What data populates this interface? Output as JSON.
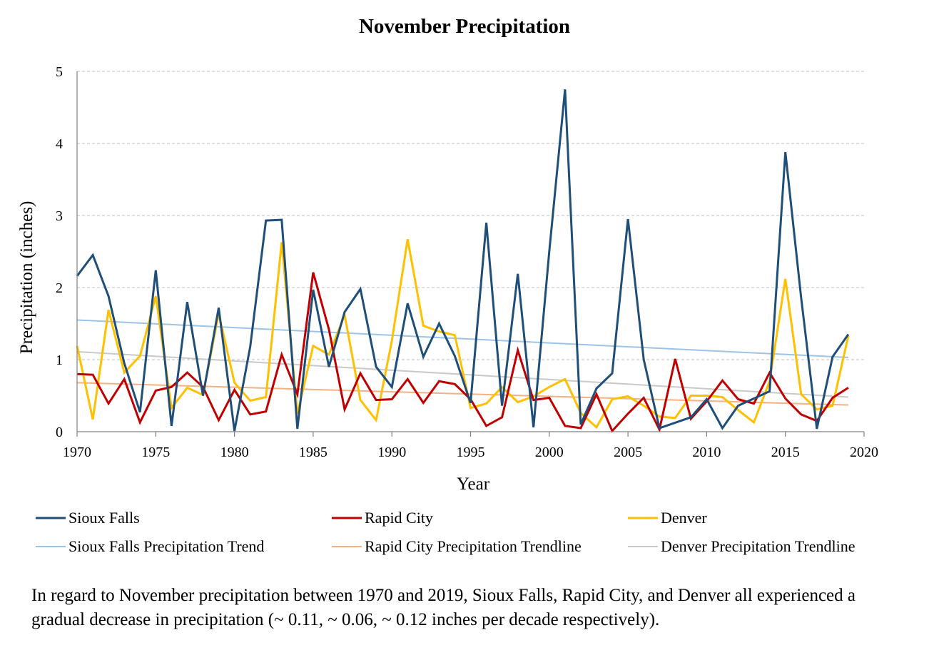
{
  "chart_data": {
    "type": "line",
    "title": "November Precipitation",
    "xlabel": "Year",
    "ylabel": "Precipitation (inches)",
    "xlim": [
      1970,
      2020
    ],
    "ylim": [
      0,
      5
    ],
    "x_ticks": [
      1970,
      1975,
      1980,
      1985,
      1990,
      1995,
      2000,
      2005,
      2010,
      2015,
      2020
    ],
    "y_ticks": [
      0,
      1,
      2,
      3,
      4,
      5
    ],
    "grid": "horizontal dashed",
    "legend_position": "bottom",
    "x": [
      1970,
      1971,
      1972,
      1973,
      1974,
      1975,
      1976,
      1977,
      1978,
      1979,
      1980,
      1981,
      1982,
      1983,
      1984,
      1985,
      1986,
      1987,
      1988,
      1989,
      1990,
      1991,
      1992,
      1993,
      1994,
      1995,
      1996,
      1997,
      1998,
      1999,
      2000,
      2001,
      2002,
      2003,
      2004,
      2005,
      2006,
      2007,
      2008,
      2009,
      2010,
      2011,
      2012,
      2013,
      2014,
      2015,
      2016,
      2017,
      2018,
      2019
    ],
    "series": [
      {
        "name": "Sioux Falls",
        "color": "#1f4e79",
        "values": [
          2.16,
          2.45,
          1.88,
          0.95,
          0.27,
          2.24,
          0.08,
          1.8,
          0.5,
          1.72,
          0.01,
          1.18,
          2.93,
          2.94,
          0.04,
          1.97,
          0.9,
          1.66,
          1.98,
          0.9,
          0.62,
          1.78,
          1.04,
          1.5,
          1.05,
          0.4,
          2.9,
          0.36,
          2.19,
          0.06,
          2.5,
          4.75,
          0.1,
          0.6,
          0.81,
          2.95,
          1.0,
          0.05,
          null,
          0.2,
          0.45,
          0.05,
          0.36,
          0.46,
          0.56,
          3.88,
          1.86,
          0.04,
          1.04,
          1.35
        ]
      },
      {
        "name": "Rapid City",
        "color": "#c00000",
        "values": [
          0.8,
          0.79,
          0.39,
          0.73,
          0.13,
          0.57,
          0.62,
          0.82,
          0.62,
          0.16,
          0.58,
          0.24,
          0.28,
          1.07,
          0.52,
          2.21,
          1.42,
          0.31,
          0.81,
          0.44,
          0.45,
          0.73,
          0.4,
          0.7,
          0.66,
          0.45,
          0.08,
          0.2,
          1.13,
          0.44,
          0.47,
          0.08,
          0.05,
          0.52,
          0.01,
          0.25,
          0.47,
          0.03,
          1.01,
          0.18,
          0.42,
          0.71,
          0.45,
          0.39,
          0.82,
          0.46,
          0.24,
          0.15,
          0.47,
          0.61
        ]
      },
      {
        "name": "Denver",
        "color": "#ffc000",
        "values": [
          1.19,
          0.17,
          1.69,
          0.82,
          1.05,
          1.88,
          0.33,
          0.61,
          0.51,
          1.64,
          0.68,
          0.43,
          0.48,
          2.63,
          0.25,
          1.19,
          1.07,
          1.62,
          0.44,
          0.16,
          1.26,
          2.67,
          1.47,
          1.39,
          1.34,
          0.33,
          0.39,
          0.62,
          0.41,
          0.49,
          0.62,
          0.73,
          0.26,
          0.06,
          0.45,
          0.49,
          0.36,
          0.21,
          0.19,
          0.5,
          0.5,
          0.48,
          0.3,
          0.13,
          0.7,
          2.12,
          0.52,
          0.31,
          0.36,
          1.33
        ]
      },
      {
        "name": "Sioux Falls Precipitation Trend",
        "color": "#9dc3e6",
        "values_start_end": [
          1.55,
          1.03
        ]
      },
      {
        "name": "Rapid City Precipitation Trendline",
        "color": "#f4b183",
        "values_start_end": [
          0.68,
          0.37
        ]
      },
      {
        "name": "Denver Precipitation Trendline",
        "color": "#c9c9c9",
        "values_start_end": [
          1.11,
          0.48
        ]
      }
    ]
  },
  "caption": "In regard to November precipitation between 1970 and 2019, Sioux Falls, Rapid City, and Denver all experienced a gradual decrease in precipitation (~ 0.11, ~ 0.06, ~ 0.12 inches per decade respectively)."
}
